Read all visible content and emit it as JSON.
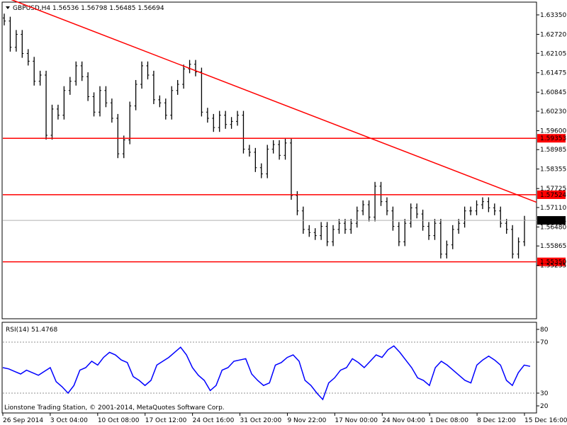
{
  "chart_data": [
    {
      "type": "line",
      "title": "GBPUSD,H4",
      "ohlc": [
        "1.56536",
        "1.56798",
        "1.56485",
        "1.56694"
      ],
      "ylim": [
        1.5353,
        1.6374
      ],
      "y_ticks": [
        "1.63350",
        "1.62720",
        "1.62105",
        "1.61475",
        "1.60845",
        "1.60230",
        "1.59600",
        "1.58985",
        "1.58355",
        "1.57725",
        "1.57110",
        "1.56480",
        "1.55865",
        "1.55235"
      ],
      "x_tick_labels": [
        "26 Sep 2014",
        "3 Oct 04:00",
        "10 Oct 08:00",
        "17 Oct 12:00",
        "24 Oct 16:00",
        "31 Oct 20:00",
        "9 Nov 22:00",
        "17 Nov 00:00",
        "24 Nov 04:00",
        "1 Dec 08:00",
        "8 Dec 12:00",
        "15 Dec 16:00"
      ],
      "current_price": "1.56694",
      "horizontal_levels": [
        {
          "label": "1.59353",
          "value": 1.59353,
          "color": "#ff0000"
        },
        {
          "label": "1.57524",
          "value": 1.57524,
          "color": "#ff0000"
        },
        {
          "label": "1.55350",
          "value": 1.5535,
          "color": "#ff0000"
        }
      ],
      "trendline": {
        "from": [
          0.0,
          1.6395
        ],
        "to": [
          1.0,
          1.5728
        ],
        "color": "#ff0000"
      },
      "bar_color": "#000000",
      "close_series": [
        1.6315,
        1.623,
        1.6272,
        1.621,
        1.6185,
        1.612,
        1.614,
        1.5945,
        1.603,
        1.601,
        1.609,
        1.612,
        1.617,
        1.6135,
        1.607,
        1.602,
        1.609,
        1.605,
        1.6,
        1.5885,
        1.593,
        1.604,
        1.611,
        1.617,
        1.614,
        1.606,
        1.605,
        1.601,
        1.609,
        1.611,
        1.616,
        1.6175,
        1.615,
        1.602,
        1.6,
        1.597,
        1.601,
        1.598,
        1.599,
        1.601,
        1.59,
        1.589,
        1.584,
        1.582,
        1.59,
        1.5915,
        1.588,
        1.592,
        1.575,
        1.57,
        1.564,
        1.563,
        1.562,
        1.565,
        1.56,
        1.564,
        1.566,
        1.564,
        1.566,
        1.57,
        1.572,
        1.568,
        1.578,
        1.573,
        1.57,
        1.565,
        1.56,
        1.566,
        1.571,
        1.569,
        1.565,
        1.562,
        1.566,
        1.556,
        1.559,
        1.564,
        1.566,
        1.57,
        1.57,
        1.572,
        1.573,
        1.571,
        1.57,
        1.566,
        1.564,
        1.556,
        1.56,
        1.567
      ],
      "subchart": {
        "title": "RSI(14) 51.4768",
        "ylim": [
          15,
          85
        ],
        "y_ticks": [
          "80",
          "70",
          "30",
          "20"
        ],
        "levels": [
          70,
          30
        ],
        "line_color": "#0000ff",
        "values": [
          50,
          49,
          47,
          45,
          48,
          46,
          44,
          47,
          50,
          39,
          35,
          30,
          36,
          48,
          50,
          55,
          52,
          58,
          62,
          60,
          56,
          54,
          43,
          40,
          36,
          40,
          52,
          55,
          58,
          62,
          66,
          60,
          50,
          44,
          40,
          32,
          36,
          48,
          50,
          55,
          56,
          57,
          45,
          40,
          36,
          38,
          52,
          54,
          58,
          60,
          55,
          40,
          36,
          30,
          25,
          38,
          42,
          48,
          50,
          57,
          54,
          50,
          55,
          60,
          58,
          64,
          67,
          62,
          56,
          50,
          42,
          40,
          36,
          50,
          55,
          52,
          48,
          44,
          40,
          38,
          52,
          56,
          59,
          56,
          52,
          40,
          36,
          46,
          52,
          51
        ]
      },
      "copyright": "Lionstone Trading Station, © 2001-2014, MetaQuotes Software Corp."
    }
  ]
}
